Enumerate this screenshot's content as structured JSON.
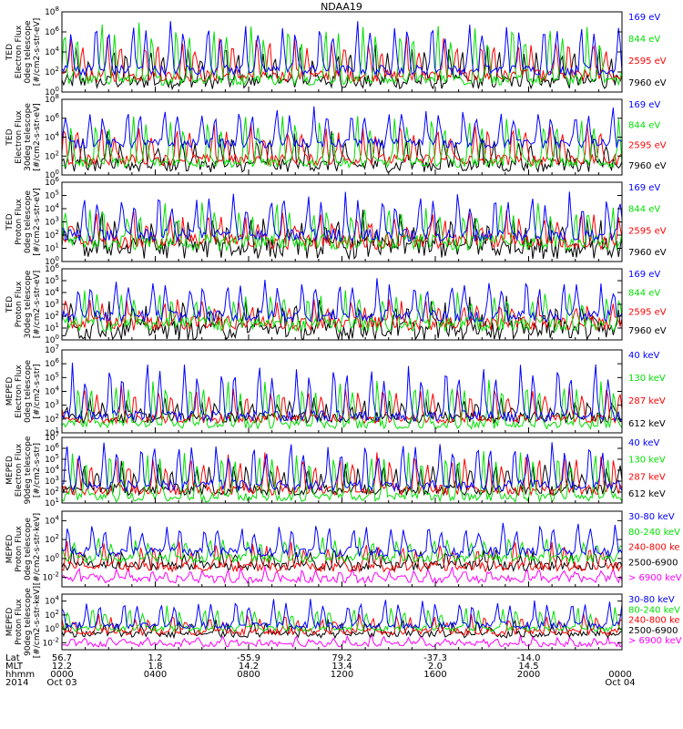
{
  "title": "NDAA19",
  "colors": {
    "black": "#000000",
    "red": "#ff0000",
    "green": "#00e000",
    "blue": "#0000ff",
    "magenta": "#ff00ff"
  },
  "chart_data": [
    {
      "type": "line",
      "instrument": "TED",
      "ylabel": [
        "TED",
        "Electron Flux",
        "0deg telescope",
        "[#/cm2-s-str-eV]"
      ],
      "yticks": [
        0,
        2,
        4,
        6,
        8
      ],
      "ylim": [
        0,
        8
      ],
      "log_scale": true,
      "xlim": [
        0,
        24
      ],
      "series": [
        {
          "name": "7960 eV",
          "color": "#000000",
          "baseline": 1.0,
          "peak": 4.2,
          "noise": 0.7
        },
        {
          "name": "2595 eV",
          "color": "#ff0000",
          "baseline": 1.6,
          "peak": 5.2,
          "noise": 0.6
        },
        {
          "name": "844 eV",
          "color": "#00e000",
          "baseline": 1.2,
          "peak": 6.5,
          "noise": 0.5
        },
        {
          "name": "169 eV",
          "color": "#0000ff",
          "baseline": 2.2,
          "peak": 6.8,
          "noise": 0.5
        }
      ]
    },
    {
      "type": "line",
      "instrument": "TED",
      "ylabel": [
        "TED",
        "Electron Flux",
        "30deg telescope",
        "[#/cm2-s-str-eV]"
      ],
      "yticks": [
        0,
        2,
        4,
        6,
        8
      ],
      "ylim": [
        0,
        8
      ],
      "log_scale": true,
      "xlim": [
        0,
        24
      ],
      "series": [
        {
          "name": "7960 eV",
          "color": "#000000",
          "baseline": 1.0,
          "peak": 4.0,
          "noise": 0.7
        },
        {
          "name": "2595 eV",
          "color": "#ff0000",
          "baseline": 1.6,
          "peak": 5.0,
          "noise": 0.6
        },
        {
          "name": "844 eV",
          "color": "#00e000",
          "baseline": 1.3,
          "peak": 6.0,
          "noise": 0.5
        },
        {
          "name": "169 eV",
          "color": "#0000ff",
          "baseline": 3.3,
          "peak": 6.8,
          "noise": 0.5
        }
      ]
    },
    {
      "type": "line",
      "instrument": "TED",
      "ylabel": [
        "TED",
        "Proton Flux",
        "0deg telescope",
        "[#/cm2-s-str-eV]"
      ],
      "yticks": [
        0,
        1,
        2,
        3,
        4,
        5,
        6
      ],
      "ylim": [
        0,
        6
      ],
      "log_scale": true,
      "xlim": [
        0,
        24
      ],
      "series": [
        {
          "name": "7960 eV",
          "color": "#000000",
          "baseline": 1.0,
          "peak": 3.2,
          "noise": 0.8
        },
        {
          "name": "2595 eV",
          "color": "#ff0000",
          "baseline": 1.5,
          "peak": 3.5,
          "noise": 0.6
        },
        {
          "name": "844 eV",
          "color": "#00e000",
          "baseline": 1.4,
          "peak": 4.0,
          "noise": 0.6
        },
        {
          "name": "169 eV",
          "color": "#0000ff",
          "baseline": 2.0,
          "peak": 5.0,
          "noise": 0.5
        }
      ]
    },
    {
      "type": "line",
      "instrument": "TED",
      "ylabel": [
        "TED",
        "Proton Flux",
        "30deg telescope",
        "[#/cm2-s-str-eV]"
      ],
      "yticks": [
        0,
        1,
        2,
        3,
        4,
        5,
        6
      ],
      "ylim": [
        0,
        6
      ],
      "log_scale": true,
      "xlim": [
        0,
        24
      ],
      "series": [
        {
          "name": "7960 eV",
          "color": "#000000",
          "baseline": 0.8,
          "peak": 3.0,
          "noise": 0.8
        },
        {
          "name": "2595 eV",
          "color": "#ff0000",
          "baseline": 1.4,
          "peak": 3.2,
          "noise": 0.6
        },
        {
          "name": "844 eV",
          "color": "#00e000",
          "baseline": 1.3,
          "peak": 3.8,
          "noise": 0.6
        },
        {
          "name": "169 eV",
          "color": "#0000ff",
          "baseline": 2.0,
          "peak": 5.0,
          "noise": 0.5
        }
      ]
    },
    {
      "type": "line",
      "instrument": "MEPED",
      "ylabel": [
        "MEPED",
        "Electron Flux",
        "0deg telescope",
        "[#/cm2-s-str]"
      ],
      "yticks": [
        1,
        2,
        3,
        4,
        5,
        6,
        7
      ],
      "ylim": [
        1,
        7
      ],
      "log_scale": true,
      "xlim": [
        0,
        24
      ],
      "series": [
        {
          "name": "612 keV",
          "color": "#000000",
          "baseline": 2.1,
          "peak": 3.2,
          "noise": 0.4
        },
        {
          "name": "287 keV",
          "color": "#ff0000",
          "baseline": 2.0,
          "peak": 4.2,
          "noise": 0.3
        },
        {
          "name": "130 keV",
          "color": "#00e000",
          "baseline": 1.6,
          "peak": 4.6,
          "noise": 0.3
        },
        {
          "name": "40 keV",
          "color": "#0000ff",
          "baseline": 2.2,
          "peak": 5.8,
          "noise": 0.4
        }
      ]
    },
    {
      "type": "line",
      "instrument": "MEPED",
      "ylabel": [
        "MEPED",
        "Electron Flux",
        "90deg telescope",
        "[#/cm2-s-str]"
      ],
      "yticks": [
        1,
        2,
        3,
        4,
        5,
        6,
        7
      ],
      "ylim": [
        1,
        7
      ],
      "log_scale": true,
      "xlim": [
        0,
        24
      ],
      "series": [
        {
          "name": "612 keV",
          "color": "#000000",
          "baseline": 2.2,
          "peak": 4.5,
          "noise": 0.5
        },
        {
          "name": "287 keV",
          "color": "#ff0000",
          "baseline": 2.2,
          "peak": 5.2,
          "noise": 0.5
        },
        {
          "name": "130 keV",
          "color": "#00e000",
          "baseline": 1.5,
          "peak": 5.6,
          "noise": 0.4
        },
        {
          "name": "40 keV",
          "color": "#0000ff",
          "baseline": 2.6,
          "peak": 6.4,
          "noise": 0.5
        }
      ]
    },
    {
      "type": "line",
      "instrument": "MEPED",
      "ylabel": [
        "MEPED",
        "Proton Flux",
        "0deg telescope",
        "[#/cm2-s-str-keV]"
      ],
      "yticks": [
        -2,
        0,
        2,
        4
      ],
      "ylim": [
        -3,
        5
      ],
      "log_scale": true,
      "xlim": [
        0,
        24
      ],
      "series": [
        {
          "name": "> 6900 keV",
          "color": "#ff00ff",
          "baseline": -2.2,
          "peak": -1.2,
          "noise": 0.4
        },
        {
          "name": "2500-6900",
          "color": "#000000",
          "baseline": -0.8,
          "peak": 0.8,
          "noise": 0.5
        },
        {
          "name": "240-800 ke",
          "color": "#ff0000",
          "baseline": -0.9,
          "peak": 1.5,
          "noise": 0.5
        },
        {
          "name": "80-240 keV",
          "color": "#00e000",
          "baseline": 0.0,
          "peak": 2.0,
          "noise": 0.4
        },
        {
          "name": "30-80 keV",
          "color": "#0000ff",
          "baseline": 0.7,
          "peak": 3.5,
          "noise": 0.5
        }
      ]
    },
    {
      "type": "line",
      "instrument": "MEPED",
      "ylabel": [
        "MEPED",
        "Proton Flux",
        "90deg telescope",
        "[#/cm2-s-str-keV]"
      ],
      "yticks": [
        -2,
        0,
        2,
        4
      ],
      "ylim": [
        -3,
        5
      ],
      "log_scale": true,
      "xlim": [
        0,
        24
      ],
      "series": [
        {
          "name": "> 6900 keV",
          "color": "#ff00ff",
          "baseline": -2.2,
          "peak": -1.2,
          "noise": 0.4
        },
        {
          "name": "2500-6900",
          "color": "#000000",
          "baseline": -0.8,
          "peak": 1.0,
          "noise": 0.5
        },
        {
          "name": "240-800 ke",
          "color": "#ff0000",
          "baseline": -0.4,
          "peak": 1.8,
          "noise": 0.5
        },
        {
          "name": "80-240 keV",
          "color": "#00e000",
          "baseline": 0.0,
          "peak": 3.0,
          "noise": 0.4
        },
        {
          "name": "30-80 keV",
          "color": "#0000ff",
          "baseline": 0.5,
          "peak": 4.0,
          "noise": 0.5
        }
      ]
    }
  ],
  "footer": {
    "labels": [
      "Lat",
      "MLT",
      "hhmm",
      "2014"
    ],
    "columns": [
      {
        "lat": "56.7",
        "mlt": "12.2",
        "time": "0000",
        "date": "Oct 03"
      },
      {
        "lat": "1.2",
        "mlt": "1.8",
        "time": "0400",
        "date": ""
      },
      {
        "lat": "-55.9",
        "mlt": "14.2",
        "time": "0800",
        "date": ""
      },
      {
        "lat": "79.2",
        "mlt": "13.4",
        "time": "1200",
        "date": ""
      },
      {
        "lat": "-37.3",
        "mlt": "2.0",
        "time": "1600",
        "date": ""
      },
      {
        "lat": "-14.0",
        "mlt": "14.5",
        "time": "2000",
        "date": ""
      },
      {
        "lat": "",
        "mlt": "",
        "time": "0000",
        "date": "Oct 04"
      }
    ]
  }
}
